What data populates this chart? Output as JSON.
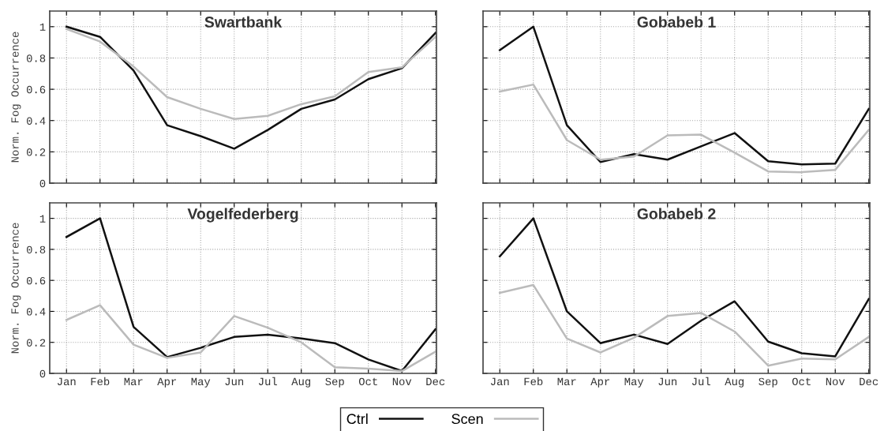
{
  "chart_data": [
    {
      "type": "line",
      "title": "Swartbank",
      "ylabel": "Norm. Fog Occurrence",
      "categories": [
        "Jan",
        "Feb",
        "Mar",
        "Apr",
        "May",
        "Jun",
        "Jul",
        "Aug",
        "Sep",
        "Oct",
        "Nov",
        "Dec"
      ],
      "ylim": [
        0,
        1.1
      ],
      "yticks": [
        0,
        0.2,
        0.4,
        0.6,
        0.8,
        1
      ],
      "grid": true,
      "tick_labels": "y",
      "legend": "bottom",
      "series": [
        {
          "name": "Ctrl",
          "color": "#111111",
          "values": [
            1.0,
            0.935,
            0.72,
            0.37,
            0.3,
            0.22,
            0.34,
            0.475,
            0.535,
            0.665,
            0.735,
            0.96
          ]
        },
        {
          "name": "Scen",
          "color": "#bbbbbb",
          "values": [
            0.985,
            0.905,
            0.745,
            0.55,
            0.475,
            0.41,
            0.43,
            0.505,
            0.555,
            0.71,
            0.74,
            0.935
          ]
        }
      ]
    },
    {
      "type": "line",
      "title": "Gobabeb 1",
      "categories": [
        "Jan",
        "Feb",
        "Mar",
        "Apr",
        "May",
        "Jun",
        "Jul",
        "Aug",
        "Sep",
        "Oct",
        "Nov",
        "Dec"
      ],
      "ylim": [
        0,
        1.1
      ],
      "yticks": [
        0,
        0.2,
        0.4,
        0.6,
        0.8,
        1
      ],
      "grid": true,
      "tick_labels": false,
      "series": [
        {
          "name": "Ctrl",
          "color": "#111111",
          "values": [
            0.85,
            1.0,
            0.37,
            0.135,
            0.185,
            0.15,
            0.235,
            0.32,
            0.14,
            0.12,
            0.125,
            0.475
          ]
        },
        {
          "name": "Scen",
          "color": "#bbbbbb",
          "values": [
            0.585,
            0.63,
            0.275,
            0.15,
            0.17,
            0.305,
            0.31,
            0.195,
            0.075,
            0.07,
            0.085,
            0.34
          ]
        }
      ]
    },
    {
      "type": "line",
      "title": "Vogelfederberg",
      "ylabel": "Norm. Fog Occurrence",
      "categories": [
        "Jan",
        "Feb",
        "Mar",
        "Apr",
        "May",
        "Jun",
        "Jul",
        "Aug",
        "Sep",
        "Oct",
        "Nov",
        "Dec"
      ],
      "ylim": [
        0,
        1.1
      ],
      "yticks": [
        0,
        0.2,
        0.4,
        0.6,
        0.8,
        1
      ],
      "grid": true,
      "series": [
        {
          "name": "Ctrl",
          "color": "#111111",
          "values": [
            0.88,
            1.0,
            0.3,
            0.105,
            0.165,
            0.235,
            0.25,
            0.225,
            0.195,
            0.09,
            0.015,
            0.285
          ]
        },
        {
          "name": "Scen",
          "color": "#bbbbbb",
          "values": [
            0.345,
            0.44,
            0.185,
            0.1,
            0.135,
            0.37,
            0.295,
            0.2,
            0.04,
            0.03,
            0.015,
            0.14
          ]
        }
      ]
    },
    {
      "type": "line",
      "title": "Gobabeb 2",
      "categories": [
        "Jan",
        "Feb",
        "Mar",
        "Apr",
        "May",
        "Jun",
        "Jul",
        "Aug",
        "Sep",
        "Oct",
        "Nov",
        "Dec"
      ],
      "ylim": [
        0,
        1.1
      ],
      "yticks": [
        0,
        0.2,
        0.4,
        0.6,
        0.8,
        1
      ],
      "grid": true,
      "tick_labels": "x",
      "series": [
        {
          "name": "Ctrl",
          "color": "#111111",
          "values": [
            0.755,
            1.0,
            0.4,
            0.195,
            0.25,
            0.19,
            0.34,
            0.465,
            0.205,
            0.13,
            0.11,
            0.48
          ]
        },
        {
          "name": "Scen",
          "color": "#bbbbbb",
          "values": [
            0.52,
            0.57,
            0.225,
            0.135,
            0.23,
            0.37,
            0.39,
            0.27,
            0.05,
            0.095,
            0.09,
            0.235
          ]
        }
      ]
    }
  ]
}
